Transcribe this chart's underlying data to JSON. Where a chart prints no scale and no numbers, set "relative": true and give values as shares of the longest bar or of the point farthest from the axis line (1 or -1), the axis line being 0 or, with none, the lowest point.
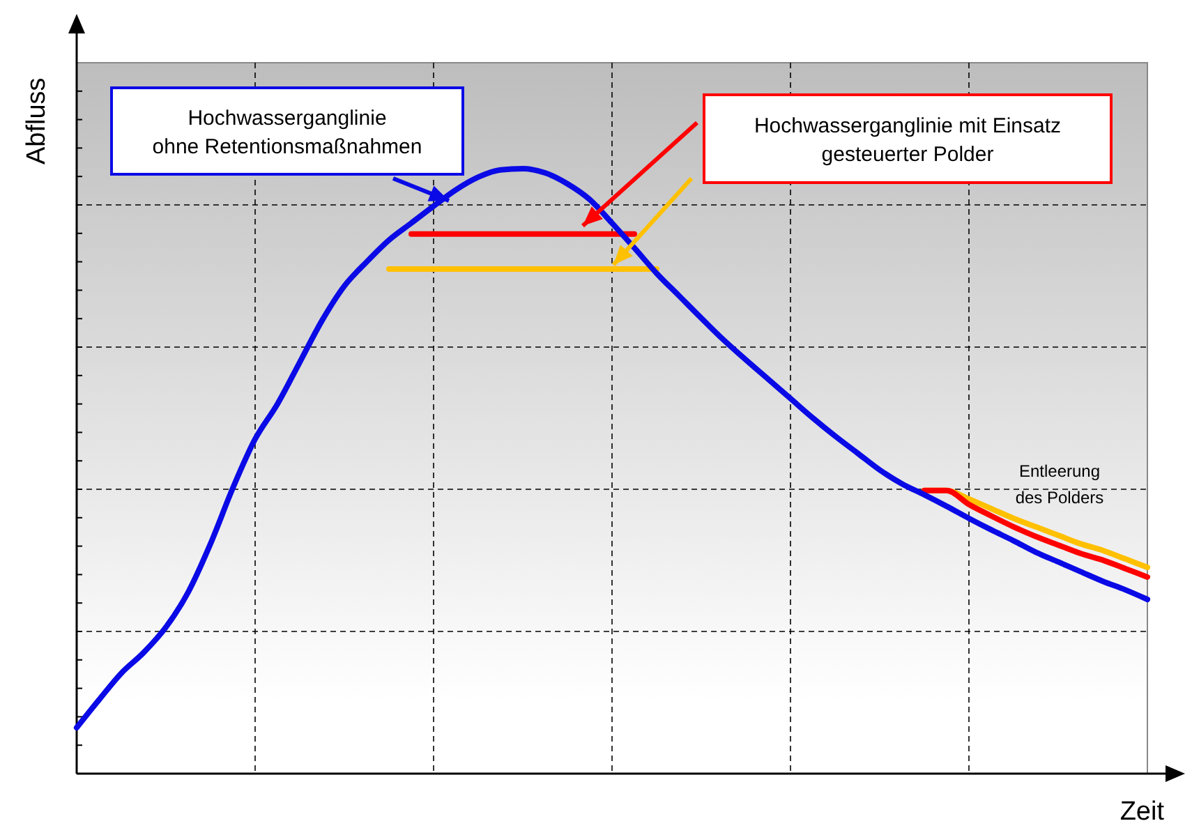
{
  "chart_data": {
    "type": "line",
    "relative": true,
    "xlabel": "Zeit",
    "ylabel": "Abfluss",
    "grid": true,
    "legend": false,
    "marker": "none",
    "line_style": "solid",
    "categories": [
      null,
      null,
      null,
      null,
      null,
      null,
      null,
      null,
      null,
      null,
      null,
      null,
      null,
      null,
      null,
      null,
      null,
      null,
      null,
      null,
      null,
      null,
      null,
      null,
      null,
      null,
      null,
      null,
      null,
      null,
      null,
      null,
      null,
      null,
      null,
      null,
      null,
      null,
      null,
      null,
      null,
      null,
      null,
      null,
      null,
      null,
      null,
      null,
      null
    ],
    "annotations": [
      "Hochwasserganglinie\nohne Retentionsmaßnahmen",
      "Hochwasserganglinie mit Einsatz\ngesteuerter Polder",
      "Entleerung\ndes Polders"
    ],
    "series": [
      {
        "color": "#ffc000",
        "values": [
          null,
          null,
          null,
          null,
          null,
          null,
          null,
          null,
          null,
          null,
          null,
          null,
          null,
          null,
          0.834,
          0.834,
          0.834,
          0.834,
          0.834,
          0.834,
          0.834,
          0.834,
          0.834,
          0.834,
          0.834,
          0.834,
          0.834,
          null,
          null,
          null,
          null,
          null,
          null,
          null,
          null,
          null,
          null,
          null,
          0.468,
          0.468,
          0.454,
          0.438,
          0.422,
          0.408,
          0.394,
          0.38,
          0.369,
          0.355,
          0.341
        ]
      },
      {
        "color": "#ff0000",
        "values": [
          null,
          null,
          null,
          null,
          null,
          null,
          null,
          null,
          null,
          null,
          null,
          null,
          null,
          null,
          null,
          0.892,
          0.892,
          0.892,
          0.892,
          0.892,
          0.892,
          0.892,
          0.892,
          0.892,
          0.892,
          0.892,
          null,
          null,
          null,
          null,
          null,
          null,
          null,
          null,
          null,
          null,
          null,
          null,
          0.468,
          0.468,
          0.445,
          0.426,
          0.408,
          0.392,
          0.378,
          0.364,
          0.353,
          0.339,
          0.325
        ]
      },
      {
        "color": "#0a0ae6",
        "values": [
          0.076,
          0.122,
          0.166,
          0.2,
          0.242,
          0.3,
          0.38,
          0.472,
          0.553,
          0.611,
          0.68,
          0.749,
          0.806,
          0.846,
          0.882,
          0.91,
          0.938,
          0.965,
          0.986,
          0.998,
          1,
          0.993,
          0.975,
          0.949,
          0.91,
          0.869,
          0.827,
          0.79,
          0.753,
          0.717,
          0.684,
          0.652,
          0.62,
          0.588,
          0.558,
          0.53,
          0.502,
          0.479,
          0.461,
          0.442,
          0.422,
          0.403,
          0.385,
          0.366,
          0.35,
          0.334,
          0.318,
          0.304,
          0.288
        ]
      }
    ]
  }
}
